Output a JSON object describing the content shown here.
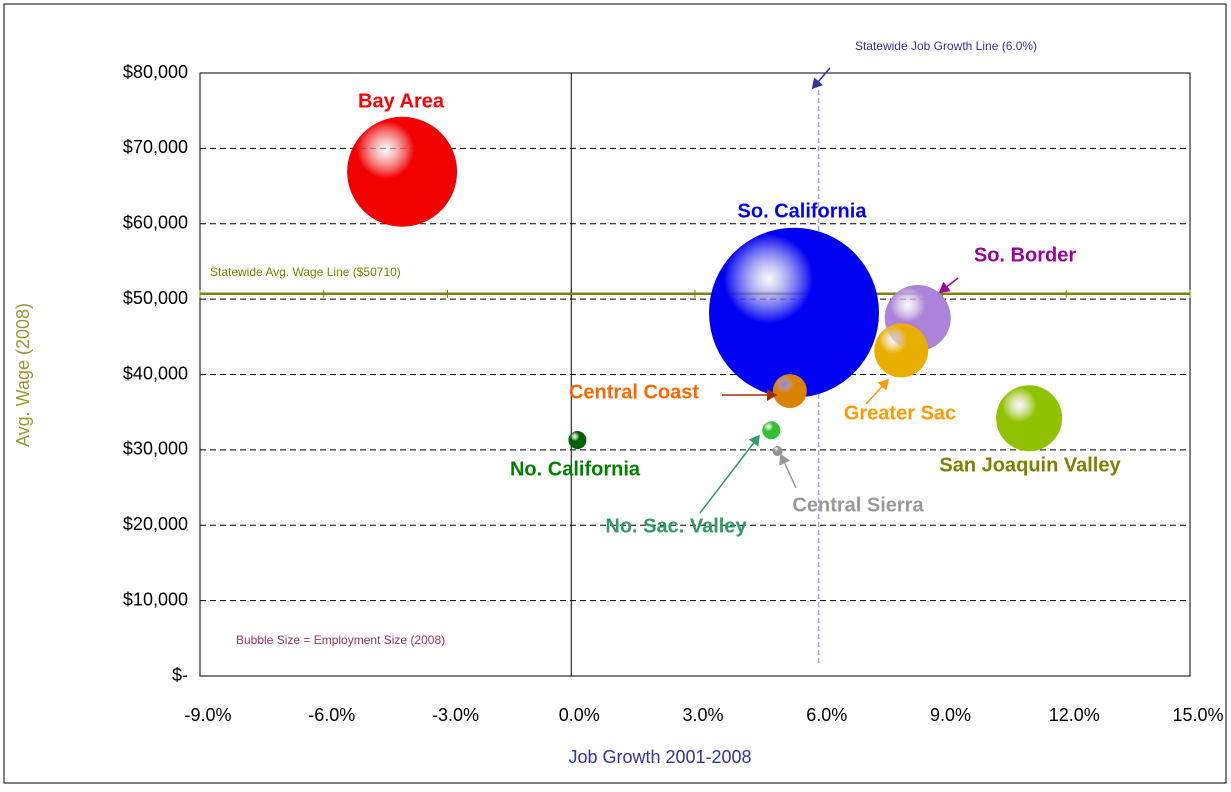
{
  "chart_data": {
    "type": "bubble",
    "x_label": "Job Growth 2001-2008",
    "y_label": "Avg. Wage (2008)",
    "xlim": [
      -9,
      15
    ],
    "xticks": [
      {
        "value": -9,
        "label": "-9.0%"
      },
      {
        "value": -6,
        "label": "-6.0%"
      },
      {
        "value": -3,
        "label": "-3.0%"
      },
      {
        "value": 0,
        "label": "0.0%"
      },
      {
        "value": 3,
        "label": "3.0%"
      },
      {
        "value": 6,
        "label": "6.0%"
      },
      {
        "value": 9,
        "label": "9.0%"
      },
      {
        "value": 12,
        "label": "12.0%"
      },
      {
        "value": 15,
        "label": "15.0%"
      }
    ],
    "ylim": [
      0,
      80000
    ],
    "yticks": [
      {
        "value": 0,
        "label": "$-"
      },
      {
        "value": 10000,
        "label": "$10,000"
      },
      {
        "value": 20000,
        "label": "$20,000"
      },
      {
        "value": 30000,
        "label": "$30,000"
      },
      {
        "value": 40000,
        "label": "$40,000"
      },
      {
        "value": 50000,
        "label": "$50,000"
      },
      {
        "value": 60000,
        "label": "$60,000"
      },
      {
        "value": 70000,
        "label": "$70,000"
      },
      {
        "value": 80000,
        "label": "$80,000"
      }
    ],
    "grid": true,
    "wage_line": {
      "value": 50710,
      "label": "Statewide Avg. Wage Line ($50710)"
    },
    "growth_line": {
      "value": 6.0,
      "label": "Statewide Job Growth Line (6.0%)"
    },
    "size_note": "Bubble Size = Employment Size (2008)",
    "series": [
      {
        "name": "Bay Area",
        "color": "#ff0000",
        "label_color": "#ff0000",
        "x": -4.1,
        "y": 66900,
        "size": 3010000
      },
      {
        "name": "So. California",
        "color": "#0000ff",
        "label_color": "#0000ff",
        "x": 5.4,
        "y": 48200,
        "size": 7200000
      },
      {
        "name": "So. Border",
        "color": "#b58ae6",
        "label_color": "#9900a0",
        "x": 8.4,
        "y": 47500,
        "size": 1085000
      },
      {
        "name": "Greater Sac",
        "color": "#f5b800",
        "label_color": "#ff9900",
        "x": 8.0,
        "y": 43200,
        "size": 726000
      },
      {
        "name": "Central Coast",
        "color": "#e68a00",
        "label_color": "#ff6600",
        "x": 5.3,
        "y": 37800,
        "size": 288000
      },
      {
        "name": "San Joaquin Valley",
        "color": "#99cc00",
        "label_color": "#808000",
        "x": 11.1,
        "y": 34200,
        "size": 1085000
      },
      {
        "name": "No. California",
        "color": "#006600",
        "label_color": "#008000",
        "x": 0.15,
        "y": 31300,
        "size": 81000
      },
      {
        "name": "No. Sac. Valley",
        "color": "#33cc33",
        "label_color": "#339966",
        "x": 4.85,
        "y": 32600,
        "size": 81000
      },
      {
        "name": "Central Sierra",
        "color": "#999999",
        "label_color": "#999999",
        "x": 5.0,
        "y": 29850,
        "size": 25000
      }
    ]
  }
}
